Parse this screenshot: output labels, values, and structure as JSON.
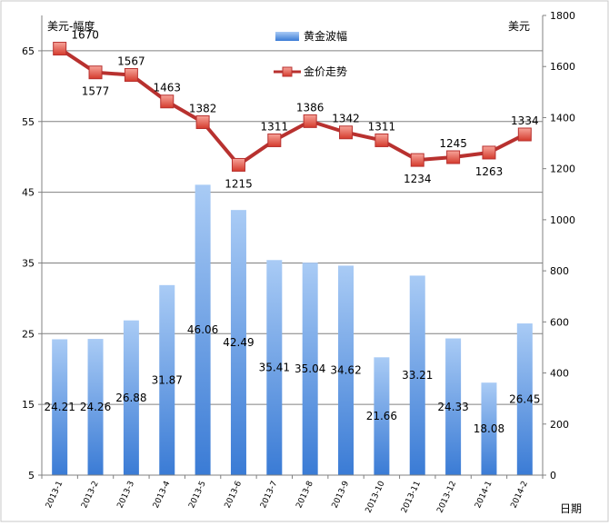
{
  "chart_data": {
    "type": "bar",
    "categories": [
      "2013-1",
      "2013-2",
      "2013-3",
      "2013-4",
      "2013-5",
      "2013-6",
      "2013-7",
      "2013-8",
      "2013-9",
      "2013-10",
      "2013-11",
      "2013-12",
      "2014-1",
      "2014-2"
    ],
    "series": [
      {
        "name": "黄金波幅",
        "type": "bar",
        "axis": "left",
        "values": [
          24.21,
          24.26,
          26.88,
          31.87,
          46.06,
          42.49,
          35.41,
          35.04,
          34.62,
          21.66,
          33.21,
          24.33,
          18.08,
          26.45
        ],
        "labels": [
          "24.21",
          "24.26",
          "26.88",
          "31.87",
          "46.06",
          "42.49",
          "35.41",
          "35.04",
          "34.62",
          "21.66",
          "33.21",
          "24.33",
          "18.08",
          "26.45"
        ]
      },
      {
        "name": "金价走势",
        "type": "line",
        "axis": "right",
        "values": [
          1670,
          1577,
          1567,
          1463,
          1382,
          1215,
          1311,
          1386,
          1342,
          1311,
          1234,
          1245,
          1263,
          1334
        ],
        "labels": [
          "1670",
          "1577",
          "1567",
          "1463",
          "1382",
          "1215",
          "1311",
          "1386",
          "1342",
          "1311",
          "1234",
          "1245",
          "1263",
          "1334"
        ]
      }
    ],
    "y_left": {
      "label": "美元-幅度",
      "ylim": [
        5,
        70
      ],
      "ticks": [
        "5",
        "15",
        "25",
        "35",
        "45",
        "55",
        "65"
      ]
    },
    "y_right": {
      "label": "美元",
      "ylim": [
        0,
        1800
      ],
      "ticks": [
        "0",
        "200",
        "400",
        "600",
        "800",
        "1000",
        "1200",
        "1400",
        "1600",
        "1800"
      ]
    },
    "xlabel": "日期",
    "grid": "horizontal",
    "legend_position": "top-center",
    "colors": {
      "bar_top": "#a9cbf5",
      "bar_bottom": "#3a7bd5",
      "line": "#b8312f",
      "marker": "#e05040",
      "grid": "#808080"
    }
  }
}
